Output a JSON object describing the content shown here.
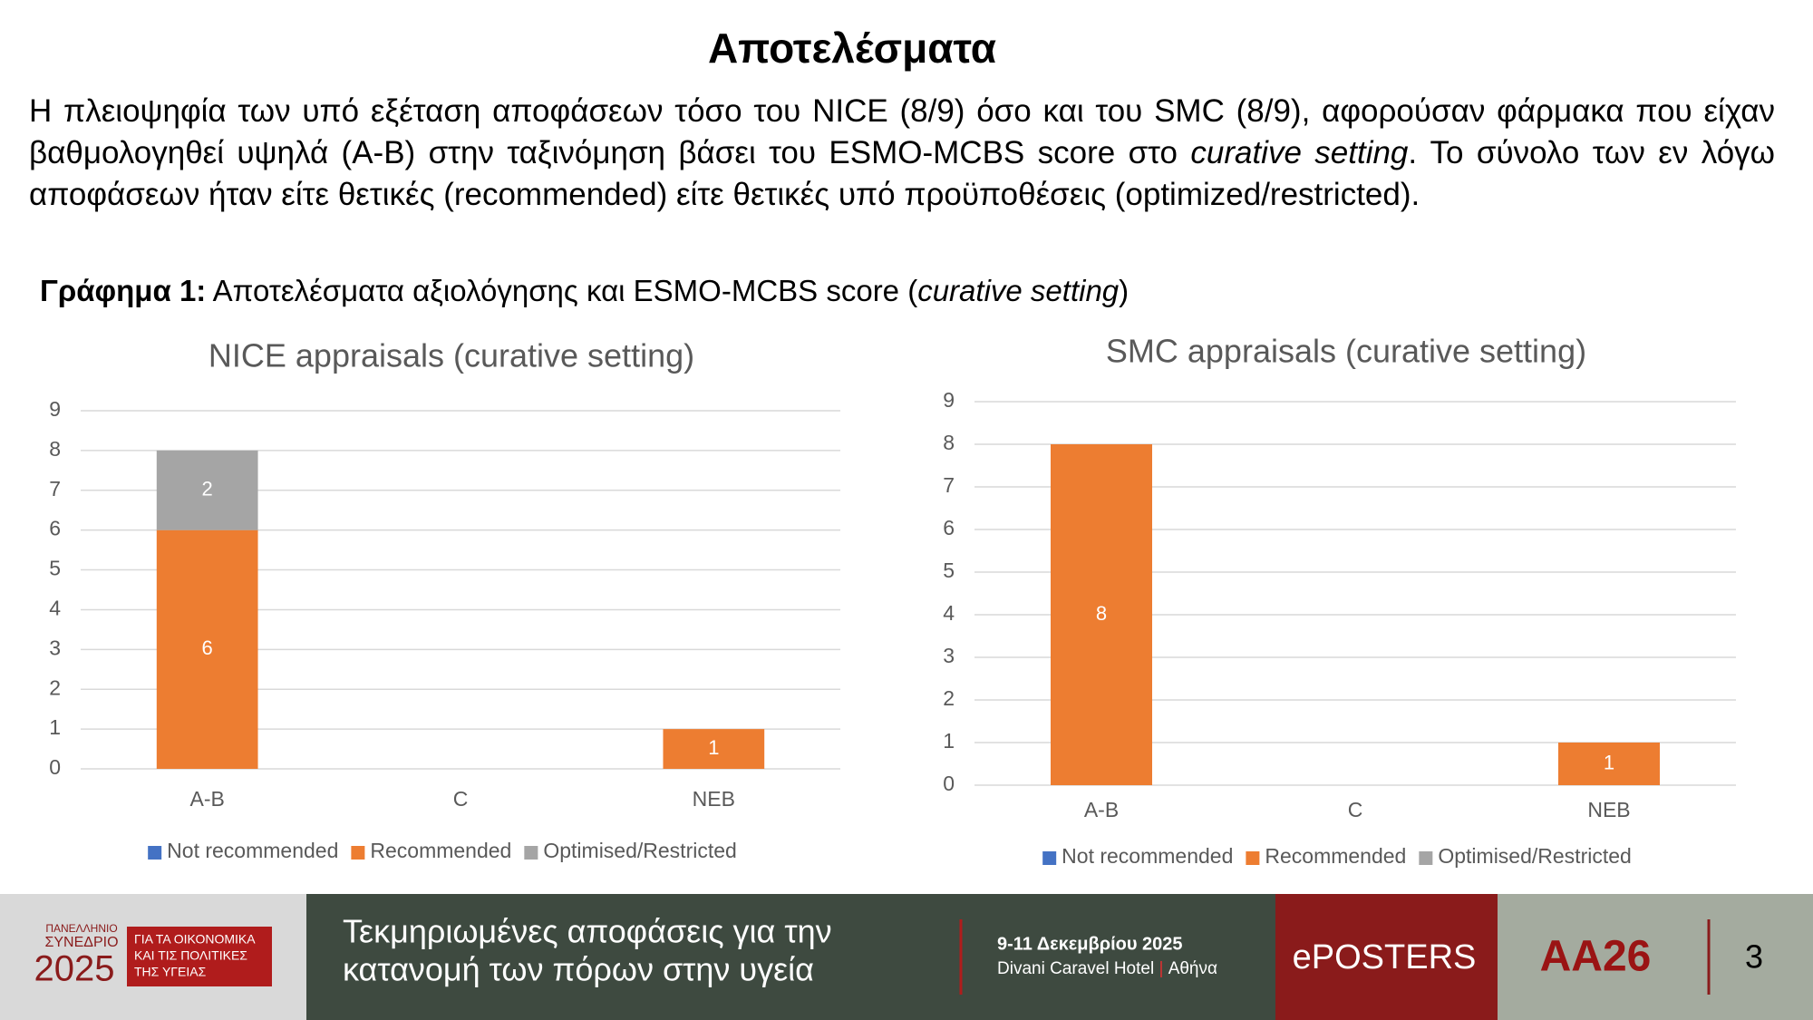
{
  "title": "Αποτελέσματα",
  "paragraph": {
    "text": "Η πλειοψηφία των υπό εξέταση αποφάσεων τόσο του NICE (8/9) όσο και του SMC (8/9), αφορούσαν φάρμακα που είχαν βαθμολογηθεί υψηλά (A-B) στην ταξινόμηση βάσει του ESMO-MCBS score στο ",
    "italic": "curative setting",
    "end": ". Το σύνολο των εν λόγω αποφάσεων ήταν είτε θετικές (recommended) είτε θετικές υπό προϋποθέσεις (optimized/restricted)."
  },
  "caption": {
    "label": "Γράφημα 1:",
    "text": " Αποτελέσματα αξιολόγησης και ESMO-MCBS score (",
    "italic": "curative setting",
    "end": ")"
  },
  "chart_data": [
    {
      "type": "stacked_bar",
      "title": "NICE appraisals (curative setting)",
      "categories": [
        "A-B",
        "C",
        "NEB"
      ],
      "series": [
        {
          "name": "Not recommended",
          "color": "#4472c4",
          "values": [
            null,
            null,
            null
          ]
        },
        {
          "name": "Recommended",
          "color": "#ed7d31",
          "values": [
            6,
            null,
            1
          ]
        },
        {
          "name": "Optimised/Restricted",
          "color": "#a5a5a5",
          "values": [
            2,
            null,
            null
          ]
        }
      ],
      "ylim": [
        0,
        9
      ],
      "yticks": [
        0,
        1,
        2,
        3,
        4,
        5,
        6,
        7,
        8,
        9
      ],
      "grid": true,
      "legend": "bottom",
      "data_labels": true
    },
    {
      "type": "stacked_bar",
      "title": "SMC appraisals (curative setting)",
      "categories": [
        "A-B",
        "C",
        "NEB"
      ],
      "series": [
        {
          "name": "Not recommended",
          "color": "#4472c4",
          "values": [
            null,
            null,
            null
          ]
        },
        {
          "name": "Recommended",
          "color": "#ed7d31",
          "values": [
            8,
            null,
            1
          ]
        },
        {
          "name": "Optimised/Restricted",
          "color": "#a5a5a5",
          "values": [
            null,
            null,
            null
          ]
        }
      ],
      "ylim": [
        0,
        9
      ],
      "yticks": [
        0,
        1,
        2,
        3,
        4,
        5,
        6,
        7,
        8,
        9
      ],
      "grid": true,
      "legend": "bottom",
      "data_labels": true
    }
  ],
  "footer": {
    "logo": [
      "ΠΑΝΕΛΛΗΝΙΟ",
      "ΣΥΝΕΔΡΙΟ",
      "2025"
    ],
    "logo_box": [
      "ΓΙΑ ΤΑ ΟΙΚΟΝΟΜΙΚΑ",
      "ΚΑΙ ΤΙΣ ΠΟΛΙΤΙΚΕΣ",
      "ΤΗΣ ΥΓΕΙΑΣ"
    ],
    "tagline": [
      "Τεκμηριωμένες αποφάσεις για την",
      "κατανομή των πόρων στην υγεία"
    ],
    "date": "9-11 Δεκεμβρίου 2025",
    "venue": "Divani Caravel Hotel",
    "city": "Αθήνα",
    "eposters": "ePOSTERS",
    "code": "AA26",
    "page": "3"
  }
}
